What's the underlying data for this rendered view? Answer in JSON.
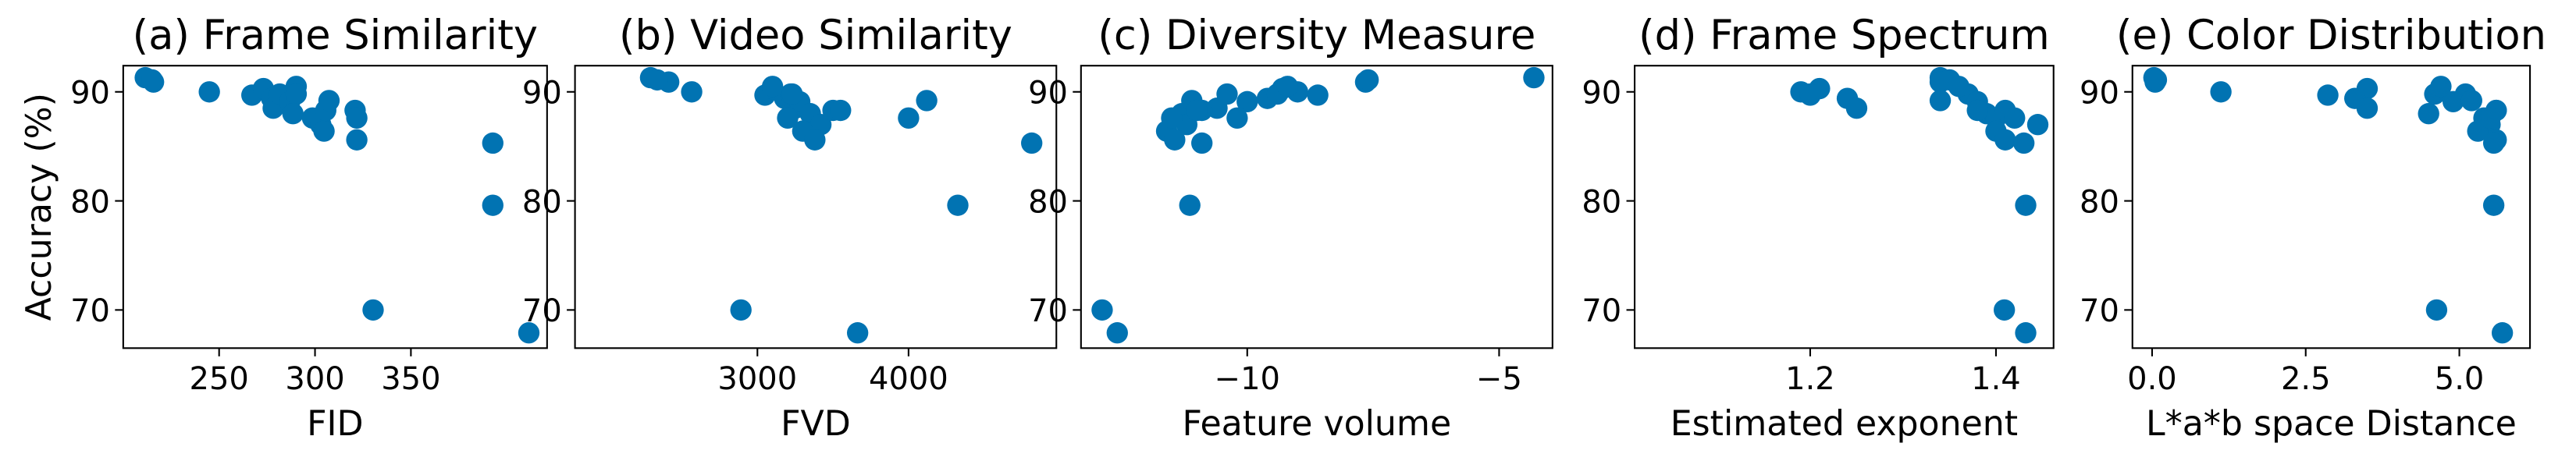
{
  "chart_data": [
    {
      "type": "scatter",
      "title": "(a) Frame Similarity",
      "xlabel": "FID",
      "ylabel": "Accuracy (%)",
      "color": "#0173b2",
      "x": [
        211.5,
        215.8,
        215,
        244.9,
        267.1,
        273.1,
        277.4,
        278.2,
        281.6,
        286.8,
        290.2,
        290.2,
        288.5,
        298.7,
        303,
        304.7,
        305.6,
        307.3,
        320.9,
        321.8,
        321.8,
        330.3,
        392.7,
        392.7,
        411.5
      ],
      "y": [
        91.3,
        90.9,
        91.1,
        90.0,
        89.7,
        90.3,
        89.4,
        88.5,
        89.8,
        89.1,
        90.5,
        89.8,
        88.0,
        87.6,
        87.0,
        86.4,
        88.3,
        89.2,
        88.3,
        87.6,
        85.6,
        70.0,
        85.3,
        79.6,
        67.9
      ],
      "xlim": [
        200,
        421
      ],
      "xticks": [
        250,
        300,
        350
      ],
      "ylim": [
        66.5,
        92.4
      ],
      "yticks": [
        70,
        80,
        90
      ]
    },
    {
      "type": "scatter",
      "title": "(b) Video Similarity",
      "xlabel": "FVD",
      "color": "#0173b2",
      "x": [
        2293,
        2413,
        2337,
        2565,
        3050,
        3100,
        3180,
        3250,
        3220,
        3280,
        3100,
        3230,
        3350,
        3200,
        3420,
        3300,
        3500,
        4120,
        3550,
        4000,
        3380,
        2891,
        4815,
        4326,
        3663
      ],
      "y": [
        91.3,
        90.9,
        91.1,
        90.0,
        89.7,
        90.3,
        89.4,
        88.5,
        89.8,
        89.1,
        90.5,
        89.8,
        88.0,
        87.6,
        87.0,
        86.4,
        88.3,
        89.2,
        88.3,
        87.6,
        85.6,
        70.0,
        85.3,
        79.6,
        67.9
      ],
      "xlim": [
        1793,
        4978
      ],
      "xticks": [
        3000,
        4000
      ],
      "ylim": [
        66.5,
        92.4
      ],
      "yticks": [
        70,
        80,
        90
      ]
    },
    {
      "type": "scatter",
      "title": "(c) Diversity Measure",
      "xlabel": "Feature volume",
      "color": "#0173b2",
      "x": [
        -4.31,
        -7.65,
        -7.6,
        -9.0,
        -8.6,
        -9.3,
        -9.6,
        -10.6,
        -9.4,
        -10.0,
        -9.2,
        -10.4,
        -11.3,
        -10.2,
        -11.2,
        -11.6,
        -10.9,
        -11.1,
        -11.0,
        -11.5,
        -11.44,
        -12.88,
        -10.9,
        -11.14,
        -12.58
      ],
      "y": [
        91.3,
        90.9,
        91.1,
        90.0,
        89.7,
        90.3,
        89.4,
        88.5,
        89.8,
        89.1,
        90.5,
        89.8,
        88.0,
        87.6,
        87.0,
        86.4,
        88.3,
        89.2,
        88.3,
        87.6,
        85.6,
        70.0,
        85.3,
        79.6,
        67.9
      ],
      "xlim": [
        -13.3,
        -3.94
      ],
      "xticks": [
        {
          "value": -10,
          "label": "−10"
        },
        {
          "value": -5,
          "label": "−5"
        }
      ],
      "ylim": [
        66.5,
        92.4
      ],
      "yticks": [
        70,
        80,
        90
      ]
    },
    {
      "type": "scatter",
      "title": "(d) Frame Spectrum",
      "xlabel": "Estimated exponent",
      "color": "#0173b2",
      "x": [
        1.34,
        1.34,
        1.35,
        1.19,
        1.2,
        1.21,
        1.24,
        1.25,
        1.37,
        1.38,
        1.36,
        1.2,
        1.39,
        1.4,
        1.445,
        1.4,
        1.38,
        1.34,
        1.41,
        1.42,
        1.41,
        1.409,
        1.43,
        1.432,
        1.432
      ],
      "y": [
        91.3,
        90.9,
        91.1,
        90.0,
        89.7,
        90.3,
        89.4,
        88.5,
        89.8,
        89.1,
        90.5,
        89.8,
        88.0,
        87.6,
        87.0,
        86.4,
        88.3,
        89.2,
        88.3,
        87.6,
        85.6,
        70.0,
        85.3,
        79.6,
        67.9
      ],
      "xlim": [
        1.011,
        1.462
      ],
      "xticks": [
        1.2,
        1.4
      ],
      "ylim": [
        66.5,
        92.4
      ],
      "yticks": [
        70,
        80,
        90
      ]
    },
    {
      "type": "scatter",
      "title": "(e) Color Distribution",
      "xlabel": "L*a*b space Distance",
      "color": "#0173b2",
      "x": [
        0.03,
        0.05,
        0.07,
        1.12,
        2.86,
        3.5,
        3.3,
        3.5,
        4.6,
        4.9,
        4.7,
        5.1,
        4.5,
        5.4,
        5.5,
        5.3,
        5.6,
        5.2,
        5.6,
        5.5,
        5.6,
        4.63,
        5.56,
        5.56,
        5.7
      ],
      "y": [
        91.3,
        90.9,
        91.1,
        90.0,
        89.7,
        90.3,
        89.4,
        88.5,
        89.8,
        89.1,
        90.5,
        89.8,
        88.0,
        87.6,
        87.0,
        86.4,
        88.3,
        89.2,
        88.3,
        87.6,
        85.6,
        70.0,
        85.3,
        79.6,
        67.9
      ],
      "xlim": [
        -0.32,
        6.15
      ],
      "xticks": [
        {
          "value": 0,
          "label": "0.0"
        },
        2.5,
        {
          "value": 5,
          "label": "5.0"
        }
      ],
      "ylim": [
        66.5,
        92.4
      ],
      "yticks": [
        70,
        80,
        90
      ]
    }
  ]
}
